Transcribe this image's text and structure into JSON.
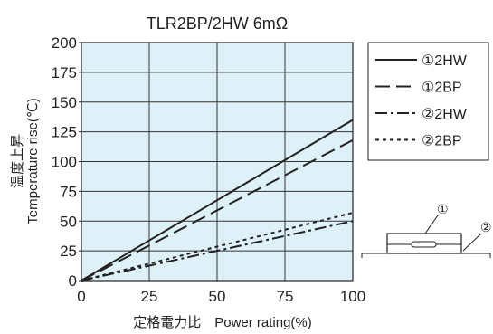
{
  "chart_data": {
    "type": "line",
    "title": "TLR2BP/2HW 6mΩ",
    "xlabel": "定格電力比　Power rating(%)",
    "ylabel_jp": "温度上昇",
    "ylabel": "Temperature rise(℃)",
    "xlim": [
      0,
      100
    ],
    "ylim": [
      0,
      200
    ],
    "x_ticks": [
      0,
      25,
      50,
      75,
      100
    ],
    "y_ticks": [
      0,
      25,
      50,
      75,
      100,
      125,
      150,
      175,
      200
    ],
    "grid": true,
    "plot_background": "#dff1f8",
    "legend_position": "right",
    "series": [
      {
        "name": "①2HW",
        "style": "solid",
        "x": [
          0,
          100
        ],
        "y": [
          0,
          135
        ]
      },
      {
        "name": "①2BP",
        "style": "long-dash",
        "x": [
          0,
          100
        ],
        "y": [
          0,
          118
        ]
      },
      {
        "name": "②2HW",
        "style": "dash-dot",
        "x": [
          0,
          100
        ],
        "y": [
          0,
          50
        ]
      },
      {
        "name": "②2BP",
        "style": "short-dash",
        "x": [
          0,
          100
        ],
        "y": [
          0,
          57
        ]
      }
    ],
    "diagram_markers": [
      "①",
      "②"
    ]
  }
}
